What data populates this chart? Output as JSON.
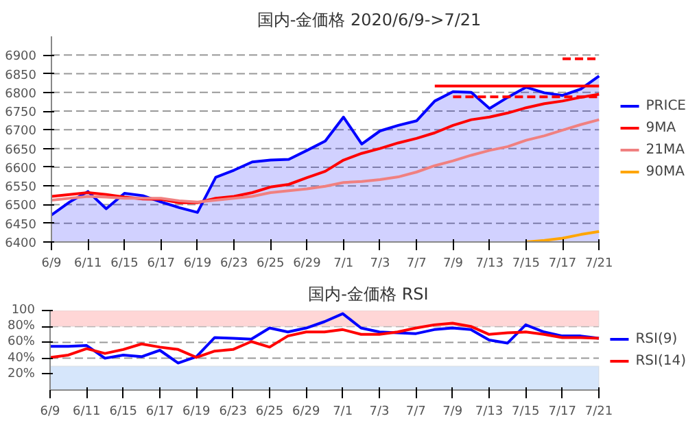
{
  "chart_data": [
    {
      "type": "line",
      "title": "国内-金価格 2020/6/9->7/21",
      "categories": [
        "6/9",
        null,
        "6/11",
        null,
        "6/15",
        null,
        "6/17",
        null,
        "6/19",
        null,
        "6/23",
        null,
        "6/25",
        null,
        "6/29",
        null,
        "7/1",
        null,
        "7/3",
        null,
        "7/7",
        null,
        "7/9",
        null,
        "7/13",
        null,
        "7/15",
        null,
        "7/17",
        null,
        "7/21"
      ],
      "series": [
        {
          "name": "PRICE",
          "type": "area",
          "color": "#0000ff",
          "values": [
            6472,
            6507,
            6535,
            6489,
            6530,
            6524,
            6507,
            6492,
            6479,
            6573,
            6592,
            6614,
            6619,
            6621,
            6645,
            6670,
            6734,
            6662,
            6697,
            6712,
            6724,
            6777,
            6802,
            6800,
            6757,
            6787,
            6814,
            6799,
            6792,
            6809,
            6844
          ]
        },
        {
          "name": "9MA",
          "color": "#ff0000",
          "values": [
            6522,
            6527,
            6532,
            6527,
            6520,
            6515,
            6514,
            6505,
            6505,
            6517,
            6522,
            6532,
            6547,
            6554,
            6572,
            6589,
            6619,
            6637,
            6650,
            6665,
            6677,
            6692,
            6712,
            6727,
            6734,
            6745,
            6759,
            6770,
            6777,
            6787,
            6795
          ]
        },
        {
          "name": "21MA",
          "color": "#f08080",
          "values": [
            6512,
            6517,
            6522,
            6520,
            6517,
            6517,
            6517,
            6510,
            6507,
            6512,
            6517,
            6522,
            6532,
            6537,
            6542,
            6549,
            6559,
            6562,
            6567,
            6574,
            6587,
            6604,
            6617,
            6632,
            6645,
            6655,
            6672,
            6684,
            6699,
            6714,
            6727
          ]
        },
        {
          "name": "90MA",
          "color": "#ffa500",
          "values": [
            null,
            null,
            null,
            null,
            null,
            null,
            null,
            null,
            null,
            null,
            null,
            null,
            null,
            null,
            null,
            null,
            null,
            null,
            null,
            null,
            null,
            null,
            null,
            null,
            null,
            null,
            6400,
            6404,
            6410,
            6420,
            6428
          ]
        },
        {
          "color": "#ff0000",
          "line_style": "solid",
          "values": [
            null,
            null,
            null,
            null,
            null,
            null,
            null,
            null,
            null,
            null,
            null,
            null,
            null,
            null,
            null,
            null,
            null,
            null,
            null,
            null,
            null,
            6817,
            6817,
            6817,
            6817,
            6817,
            6817,
            6817,
            6817,
            6817,
            6817
          ]
        },
        {
          "color": "#ff0000",
          "line_style": "dashed",
          "values": [
            null,
            null,
            null,
            null,
            null,
            null,
            null,
            null,
            null,
            null,
            null,
            null,
            null,
            null,
            null,
            null,
            null,
            null,
            null,
            null,
            null,
            null,
            6788,
            6788,
            6788,
            6788,
            6788,
            6788,
            6788,
            6788,
            6788
          ]
        },
        {
          "color": "#ff0000",
          "line_style": "dashed",
          "values": [
            null,
            null,
            null,
            null,
            null,
            null,
            null,
            null,
            null,
            null,
            null,
            null,
            null,
            null,
            null,
            null,
            null,
            null,
            null,
            null,
            null,
            null,
            null,
            null,
            null,
            null,
            null,
            null,
            6890,
            6890,
            6890
          ]
        }
      ],
      "ylim": [
        6400,
        6950
      ],
      "yticks": [
        6400,
        6450,
        6500,
        6550,
        6600,
        6650,
        6700,
        6750,
        6800,
        6850,
        6900
      ],
      "grid": "y",
      "legend": "right"
    },
    {
      "type": "line",
      "title": "国内-金価格 RSI",
      "categories": [
        "6/9",
        null,
        "6/11",
        null,
        "6/15",
        null,
        "6/17",
        null,
        "6/19",
        null,
        "6/23",
        null,
        "6/25",
        null,
        "6/29",
        null,
        "7/1",
        null,
        "7/3",
        null,
        "7/7",
        null,
        "7/9",
        null,
        "7/13",
        null,
        "7/15",
        null,
        "7/17",
        null,
        "7/21"
      ],
      "series": [
        {
          "name": "RSI(9)",
          "color": "#0000ff",
          "values": [
            55,
            55,
            56,
            40,
            44,
            42,
            50,
            34,
            42,
            66,
            65,
            64,
            78,
            73,
            78,
            86,
            96,
            78,
            73,
            72,
            71,
            76,
            78,
            76,
            63,
            59,
            82,
            73,
            68,
            68,
            65
          ]
        },
        {
          "name": "RSI(14)",
          "color": "#ff0000",
          "values": [
            41,
            44,
            52,
            46,
            51,
            58,
            54,
            51,
            41,
            49,
            51,
            61,
            54,
            68,
            73,
            73,
            76,
            70,
            70,
            73,
            78,
            82,
            84,
            80,
            70,
            72,
            73,
            70,
            66,
            66,
            65
          ]
        }
      ],
      "ylim": [
        0,
        100
      ],
      "yticks": [
        {
          "value": 20,
          "label": "20%"
        },
        {
          "value": 40,
          "label": "40%"
        },
        {
          "value": 60,
          "label": "60%"
        },
        {
          "value": 80,
          "label": "80%"
        },
        100
      ],
      "bands": [
        {
          "axis": "y",
          "from": 80,
          "to": 100,
          "color": "#ffd6d6"
        },
        {
          "axis": "y",
          "from": 0,
          "to": 30,
          "color": "#d6e6fb"
        }
      ],
      "grid": "y",
      "legend": "right"
    }
  ]
}
